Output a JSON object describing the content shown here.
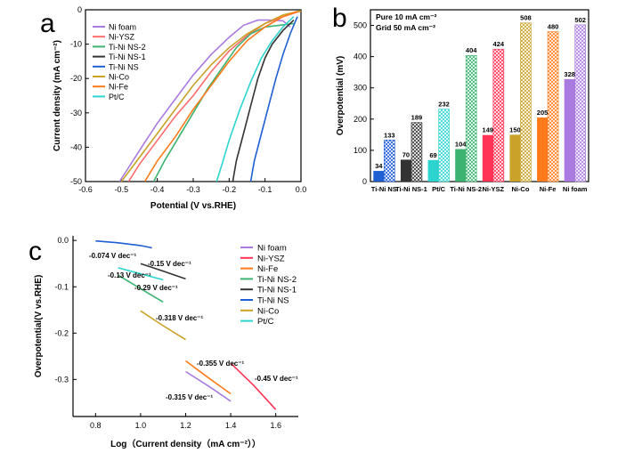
{
  "chart_data": [
    {
      "panel": "a",
      "type": "line",
      "xlabel": "Potential (V vs.RHE)",
      "ylabel": "Current density (mA cm⁻²)",
      "xlim": [
        -0.6,
        0.0
      ],
      "ylim": [
        -50,
        0
      ],
      "xticks": [
        "-0.6",
        "-0.5",
        "-0.4",
        "-0.3",
        "-0.2",
        "-0.1",
        "0.0"
      ],
      "yticks": [
        "0",
        "-10",
        "-20",
        "-30",
        "-40",
        "-50"
      ],
      "legend_position": "top-left",
      "series": [
        {
          "name": "Ni foam",
          "color": "#a97ae0",
          "points": [
            [
              -0.505,
              -50
            ],
            [
              -0.45,
              -41
            ],
            [
              -0.4,
              -33
            ],
            [
              -0.35,
              -26
            ],
            [
              -0.3,
              -19
            ],
            [
              -0.25,
              -13
            ],
            [
              -0.2,
              -8
            ],
            [
              -0.16,
              -4.5
            ],
            [
              -0.12,
              -3
            ],
            [
              -0.08,
              -3
            ],
            [
              -0.05,
              -3.2
            ],
            [
              -0.03,
              -5
            ]
          ]
        },
        {
          "name": "Ni-YSZ",
          "color": "#ff6b6b",
          "points": [
            [
              -0.48,
              -50
            ],
            [
              -0.45,
              -45
            ],
            [
              -0.4,
              -38
            ],
            [
              -0.35,
              -31
            ],
            [
              -0.3,
              -25
            ],
            [
              -0.25,
              -18
            ],
            [
              -0.2,
              -12
            ],
            [
              -0.15,
              -7.5
            ],
            [
              -0.1,
              -4
            ],
            [
              -0.05,
              -2
            ],
            [
              -0.02,
              -1
            ],
            [
              0.0,
              -0.4
            ]
          ]
        },
        {
          "name": "Ti-Ni NS-2",
          "color": "#3cb371",
          "points": [
            [
              -0.41,
              -50
            ],
            [
              -0.38,
              -44
            ],
            [
              -0.34,
              -37
            ],
            [
              -0.3,
              -30
            ],
            [
              -0.26,
              -23
            ],
            [
              -0.22,
              -17
            ],
            [
              -0.18,
              -11
            ],
            [
              -0.14,
              -7
            ],
            [
              -0.1,
              -5
            ],
            [
              -0.06,
              -4.5
            ],
            [
              -0.02,
              -4
            ]
          ]
        },
        {
          "name": "Ti-Ni NS-1",
          "color": "#333333",
          "points": [
            [
              -0.19,
              -50
            ],
            [
              -0.18,
              -44
            ],
            [
              -0.16,
              -36
            ],
            [
              -0.14,
              -28
            ],
            [
              -0.12,
              -20
            ],
            [
              -0.1,
              -14
            ],
            [
              -0.08,
              -10
            ],
            [
              -0.05,
              -6
            ],
            [
              -0.02,
              -3
            ]
          ]
        },
        {
          "name": "Ti-Ni NS",
          "color": "#1f5fd4",
          "points": [
            [
              -0.14,
              -50
            ],
            [
              -0.13,
              -44
            ],
            [
              -0.11,
              -36
            ],
            [
              -0.09,
              -28
            ],
            [
              -0.07,
              -20
            ],
            [
              -0.05,
              -13
            ],
            [
              -0.03,
              -7
            ],
            [
              -0.01,
              -2
            ]
          ]
        },
        {
          "name": "Ni-Co",
          "color": "#c9a227",
          "points": [
            [
              -0.5,
              -50
            ],
            [
              -0.45,
              -43
            ],
            [
              -0.4,
              -36
            ],
            [
              -0.35,
              -29
            ],
            [
              -0.3,
              -22
            ],
            [
              -0.25,
              -16
            ],
            [
              -0.2,
              -11
            ],
            [
              -0.15,
              -7
            ],
            [
              -0.1,
              -4
            ],
            [
              -0.05,
              -1.5
            ],
            [
              0.0,
              -0.3
            ]
          ]
        },
        {
          "name": "Ni-Fe",
          "color": "#ff7a1a",
          "points": [
            [
              -0.435,
              -50
            ],
            [
              -0.4,
              -44
            ],
            [
              -0.35,
              -37
            ],
            [
              -0.3,
              -29
            ],
            [
              -0.25,
              -22
            ],
            [
              -0.2,
              -15
            ],
            [
              -0.15,
              -9
            ],
            [
              -0.1,
              -5
            ],
            [
              -0.05,
              -2
            ],
            [
              -0.01,
              -0.5
            ]
          ]
        },
        {
          "name": "Pt/C",
          "color": "#2dd4cf",
          "points": [
            [
              -0.235,
              -50
            ],
            [
              -0.22,
              -45
            ],
            [
              -0.2,
              -38
            ],
            [
              -0.17,
              -29
            ],
            [
              -0.14,
              -21
            ],
            [
              -0.11,
              -14
            ],
            [
              -0.08,
              -9
            ],
            [
              -0.05,
              -5
            ],
            [
              -0.02,
              -2
            ]
          ]
        }
      ]
    },
    {
      "panel": "b",
      "type": "bar",
      "ylabel": "Overpotential (mV)",
      "ylim": [
        0,
        550
      ],
      "yticks": [
        "0",
        "100",
        "200",
        "300",
        "400",
        "500"
      ],
      "legend_text": [
        "Pure  10 mA cm⁻²",
        "Grid  50 mA cm⁻²"
      ],
      "categories": [
        "Ti-Ni NS",
        "Ti-Ni NS-1",
        "Pt/C",
        "Ti-Ni NS-2",
        "Ni-YSZ",
        "Ni-Co",
        "Ni-Fe",
        "Ni foam"
      ],
      "colors": [
        "#1f5fd4",
        "#333333",
        "#2dd4cf",
        "#3cb371",
        "#ff3355",
        "#c9a227",
        "#ff7a1a",
        "#a97ae0"
      ],
      "series": [
        {
          "name": "Pure",
          "values": [
            34,
            70,
            69,
            104,
            149,
            150,
            205,
            328
          ],
          "labels": [
            "34",
            "70",
            "69",
            "104",
            "149",
            "150",
            "205",
            "328"
          ]
        },
        {
          "name": "Grid",
          "values": [
            133,
            189,
            232,
            404,
            424,
            508,
            480,
            502
          ],
          "labels": [
            "133",
            "189",
            "232",
            "404",
            "424",
            "508",
            "480",
            "502"
          ]
        }
      ]
    },
    {
      "panel": "c",
      "type": "line",
      "xlabel": "Log（Current density（mA cm⁻²））",
      "ylabel": "Overpotential(V vs.RHE)",
      "xlim": [
        0.7,
        1.7
      ],
      "ylim": [
        -0.38,
        0.01
      ],
      "xticks": [
        "0.8",
        "1.0",
        "1.2",
        "1.4",
        "1.6"
      ],
      "yticks": [
        "0.0",
        "-0.1",
        "-0.2",
        "-0.3"
      ],
      "legend_position": "right",
      "series": [
        {
          "name": "Ni foam",
          "color": "#a97ae0",
          "slope_label": "-0.315 V dec⁻¹",
          "points": [
            [
              1.2,
              -0.283
            ],
            [
              1.3,
              -0.314
            ],
            [
              1.4,
              -0.347
            ]
          ]
        },
        {
          "name": "Ni-YSZ",
          "color": "#ff3355",
          "slope_label": "-0.45 V dec⁻¹",
          "points": [
            [
              1.4,
              -0.265
            ],
            [
              1.5,
              -0.312
            ],
            [
              1.6,
              -0.365
            ]
          ]
        },
        {
          "name": "Ni-Fe",
          "color": "#ff7a1a",
          "slope_label": "-0.355 V dec⁻¹",
          "points": [
            [
              1.2,
              -0.26
            ],
            [
              1.3,
              -0.296
            ],
            [
              1.4,
              -0.331
            ]
          ]
        },
        {
          "name": "Ti-Ni NS-2",
          "color": "#3cb371",
          "slope_label": "-0.29 V dec⁻¹",
          "points": [
            [
              0.9,
              -0.075
            ],
            [
              1.0,
              -0.104
            ],
            [
              1.1,
              -0.133
            ]
          ]
        },
        {
          "name": "Ti-Ni NS-1",
          "color": "#333333",
          "slope_label": "-0.15 V dec⁻¹",
          "points": [
            [
              1.0,
              -0.05
            ],
            [
              1.1,
              -0.066
            ],
            [
              1.2,
              -0.083
            ]
          ]
        },
        {
          "name": "Ti-Ni NS",
          "color": "#1f5fd4",
          "slope_label": "-0.074 V dec⁻¹",
          "points": [
            [
              0.8,
              -0.001
            ],
            [
              0.9,
              -0.005
            ],
            [
              1.0,
              -0.011
            ],
            [
              1.05,
              -0.016
            ]
          ]
        },
        {
          "name": "Ni-Co",
          "color": "#c9a227",
          "slope_label": "-0.318 V dec⁻¹",
          "points": [
            [
              1.0,
              -0.152
            ],
            [
              1.1,
              -0.184
            ],
            [
              1.2,
              -0.214
            ]
          ]
        },
        {
          "name": "Pt/C",
          "color": "#2dd4cf",
          "slope_label": "-0.13 V dec⁻¹",
          "points": [
            [
              0.9,
              -0.059
            ],
            [
              1.0,
              -0.072
            ],
            [
              1.1,
              -0.085
            ]
          ]
        }
      ]
    }
  ],
  "panel_labels": [
    "a",
    "b",
    "c"
  ]
}
